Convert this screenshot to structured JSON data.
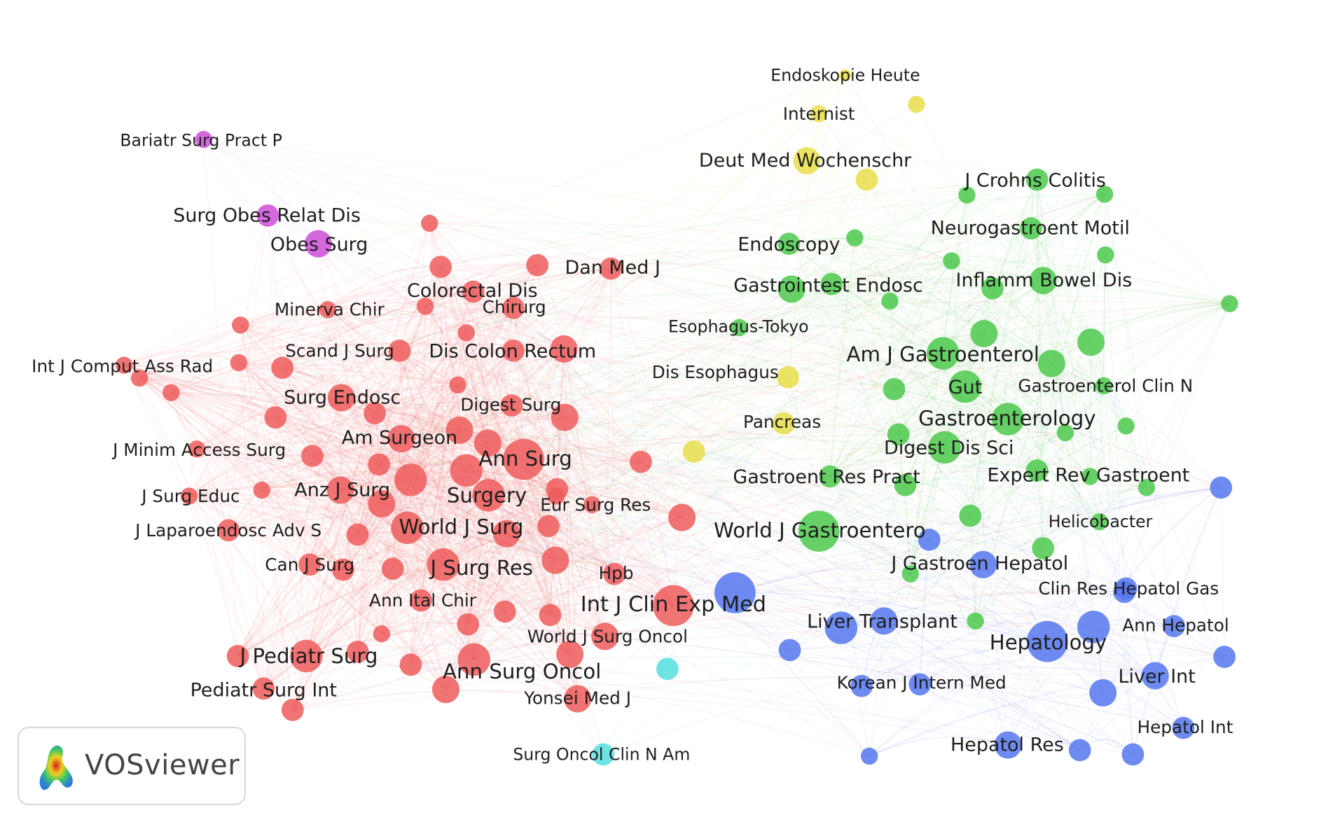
{
  "colors": {
    "red": "#ee5c5c",
    "green": "#4cc94c",
    "blue": "#5577ee",
    "yellow": "#e8de4a",
    "purple": "#cc4fd8",
    "cyan": "#55dede",
    "label": "#1e1e1e"
  },
  "logo": {
    "text": "VOSviewer"
  },
  "nodes": [
    {
      "label": "Endoskopie Heute",
      "cluster": "yellow",
      "weight": 1
    },
    {
      "label": "",
      "cluster": "yellow",
      "weight": 2
    },
    {
      "label": "Internist",
      "cluster": "yellow",
      "weight": 2
    },
    {
      "label": "Deut Med Wochenschr",
      "cluster": "yellow",
      "weight": 4
    },
    {
      "label": "",
      "cluster": "yellow",
      "weight": 3
    },
    {
      "label": "Dis Esophagus",
      "cluster": "yellow",
      "weight": 3
    },
    {
      "label": "Pancreas",
      "cluster": "yellow",
      "weight": 3
    },
    {
      "label": "",
      "cluster": "yellow",
      "weight": 3
    },
    {
      "label": "Bariatr Surg Pract P",
      "cluster": "purple",
      "weight": 2
    },
    {
      "label": "Surg Obes Relat Dis",
      "cluster": "purple",
      "weight": 3
    },
    {
      "label": "Obes Surg",
      "cluster": "purple",
      "weight": 4
    },
    {
      "label": "Surg Oncol Clin N Am",
      "cluster": "cyan",
      "weight": 3
    },
    {
      "label": "",
      "cluster": "cyan",
      "weight": 3
    },
    {
      "label": "J Crohns Colitis",
      "cluster": "green",
      "weight": 3
    },
    {
      "label": "",
      "cluster": "green",
      "weight": 2
    },
    {
      "label": "",
      "cluster": "green",
      "weight": 2
    },
    {
      "label": "Neurogastroent Motil",
      "cluster": "green",
      "weight": 3
    },
    {
      "label": "",
      "cluster": "green",
      "weight": 2
    },
    {
      "label": "Endoscopy",
      "cluster": "green",
      "weight": 3
    },
    {
      "label": "",
      "cluster": "green",
      "weight": 2
    },
    {
      "label": "Gastrointest Endosc",
      "cluster": "green",
      "weight": 4
    },
    {
      "label": "",
      "cluster": "green",
      "weight": 3
    },
    {
      "label": "",
      "cluster": "green",
      "weight": 2
    },
    {
      "label": "Inflamm Bowel Dis",
      "cluster": "green",
      "weight": 4
    },
    {
      "label": "",
      "cluster": "green",
      "weight": 3
    },
    {
      "label": "",
      "cluster": "green",
      "weight": 2
    },
    {
      "label": "Esophagus-Tokyo",
      "cluster": "green",
      "weight": 2
    },
    {
      "label": "Am J Gastroenterol",
      "cluster": "green",
      "weight": 5
    },
    {
      "label": "",
      "cluster": "green",
      "weight": 4
    },
    {
      "label": "",
      "cluster": "green",
      "weight": 4
    },
    {
      "label": "",
      "cluster": "green",
      "weight": 4
    },
    {
      "label": "Gut",
      "cluster": "green",
      "weight": 5
    },
    {
      "label": "",
      "cluster": "green",
      "weight": 3
    },
    {
      "label": "Gastroenterol Clin N",
      "cluster": "green",
      "weight": 2
    },
    {
      "label": "Gastroenterology",
      "cluster": "green",
      "weight": 5
    },
    {
      "label": "",
      "cluster": "green",
      "weight": 3
    },
    {
      "label": "",
      "cluster": "green",
      "weight": 2
    },
    {
      "label": "Digest Dis Sci",
      "cluster": "green",
      "weight": 5
    },
    {
      "label": "Gastroent Res Pract",
      "cluster": "green",
      "weight": 3
    },
    {
      "label": "",
      "cluster": "green",
      "weight": 3
    },
    {
      "label": "Expert Rev Gastroent",
      "cluster": "green",
      "weight": 3
    },
    {
      "label": "",
      "cluster": "green",
      "weight": 2
    },
    {
      "label": "",
      "cluster": "green",
      "weight": 2
    },
    {
      "label": "Helicobacter",
      "cluster": "green",
      "weight": 2
    },
    {
      "label": "",
      "cluster": "green",
      "weight": 3
    },
    {
      "label": "World J Gastroentero",
      "cluster": "green",
      "weight": 6
    },
    {
      "label": "",
      "cluster": "green",
      "weight": 3
    },
    {
      "label": "",
      "cluster": "green",
      "weight": 2
    },
    {
      "label": "",
      "cluster": "green",
      "weight": 2
    },
    {
      "label": "",
      "cluster": "green",
      "weight": 2
    },
    {
      "label": "",
      "cluster": "green",
      "weight": 2
    },
    {
      "label": "J Gastroen Hepatol",
      "cluster": "blue",
      "weight": 4
    },
    {
      "label": "",
      "cluster": "blue",
      "weight": 3
    },
    {
      "label": "Int J Clin Exp Med",
      "cluster": "blue",
      "weight": 6
    },
    {
      "label": "Clin Res Hepatol Gas",
      "cluster": "blue",
      "weight": 3
    },
    {
      "label": "Liver Transplant",
      "cluster": "blue",
      "weight": 5
    },
    {
      "label": "",
      "cluster": "blue",
      "weight": 4
    },
    {
      "label": "Hepatology",
      "cluster": "blue",
      "weight": 6
    },
    {
      "label": "",
      "cluster": "blue",
      "weight": 5
    },
    {
      "label": "Ann Hepatol",
      "cluster": "blue",
      "weight": 3
    },
    {
      "label": "",
      "cluster": "blue",
      "weight": 3
    },
    {
      "label": "",
      "cluster": "blue",
      "weight": 3
    },
    {
      "label": "Korean J Intern Med",
      "cluster": "blue",
      "weight": 3
    },
    {
      "label": "",
      "cluster": "blue",
      "weight": 3
    },
    {
      "label": "Liver Int",
      "cluster": "blue",
      "weight": 4
    },
    {
      "label": "",
      "cluster": "blue",
      "weight": 4
    },
    {
      "label": "",
      "cluster": "blue",
      "weight": 3
    },
    {
      "label": "Hepatol Int",
      "cluster": "blue",
      "weight": 3
    },
    {
      "label": "Hepatol Res",
      "cluster": "blue",
      "weight": 4
    },
    {
      "label": "",
      "cluster": "blue",
      "weight": 3
    },
    {
      "label": "",
      "cluster": "blue",
      "weight": 3
    },
    {
      "label": "",
      "cluster": "blue",
      "weight": 2
    },
    {
      "label": "",
      "cluster": "blue",
      "weight": 3
    },
    {
      "label": "Dan Med J",
      "cluster": "red",
      "weight": 3
    },
    {
      "label": "",
      "cluster": "red",
      "weight": 3
    },
    {
      "label": "",
      "cluster": "red",
      "weight": 2
    },
    {
      "label": "",
      "cluster": "red",
      "weight": 3
    },
    {
      "label": "Colorectal Dis",
      "cluster": "red",
      "weight": 3
    },
    {
      "label": "Chirurg",
      "cluster": "red",
      "weight": 3
    },
    {
      "label": "",
      "cluster": "red",
      "weight": 2
    },
    {
      "label": "Minerva Chir",
      "cluster": "red",
      "weight": 2
    },
    {
      "label": "",
      "cluster": "red",
      "weight": 2
    },
    {
      "label": "Scand J Surg",
      "cluster": "red",
      "weight": 3
    },
    {
      "label": "",
      "cluster": "red",
      "weight": 3
    },
    {
      "label": "Dis Colon Rectum",
      "cluster": "red",
      "weight": 4
    },
    {
      "label": "",
      "cluster": "red",
      "weight": 3
    },
    {
      "label": "Int J Comput Ass Rad",
      "cluster": "red",
      "weight": 2
    },
    {
      "label": "",
      "cluster": "red",
      "weight": 2
    },
    {
      "label": "",
      "cluster": "red",
      "weight": 2
    },
    {
      "label": "",
      "cluster": "red",
      "weight": 2
    },
    {
      "label": "",
      "cluster": "red",
      "weight": 2
    },
    {
      "label": "",
      "cluster": "red",
      "weight": 2
    },
    {
      "label": "Surg Endosc",
      "cluster": "red",
      "weight": 4
    },
    {
      "label": "",
      "cluster": "red",
      "weight": 3
    },
    {
      "label": "",
      "cluster": "red",
      "weight": 4
    },
    {
      "label": "Digest Surg",
      "cluster": "red",
      "weight": 3
    },
    {
      "label": "",
      "cluster": "red",
      "weight": 4
    },
    {
      "label": "",
      "cluster": "red",
      "weight": 3
    },
    {
      "label": "Am Surgeon",
      "cluster": "red",
      "weight": 4
    },
    {
      "label": "",
      "cluster": "red",
      "weight": 4
    },
    {
      "label": "Ann Surg",
      "cluster": "red",
      "weight": 6
    },
    {
      "label": "",
      "cluster": "red",
      "weight": 5
    },
    {
      "label": "J Minim Access Surg",
      "cluster": "red",
      "weight": 2
    },
    {
      "label": "",
      "cluster": "red",
      "weight": 3
    },
    {
      "label": "",
      "cluster": "red",
      "weight": 3
    },
    {
      "label": "",
      "cluster": "red",
      "weight": 5
    },
    {
      "label": "",
      "cluster": "red",
      "weight": 3
    },
    {
      "label": "J Surg Educ",
      "cluster": "red",
      "weight": 2
    },
    {
      "label": "",
      "cluster": "red",
      "weight": 2
    },
    {
      "label": "Anz J Surg",
      "cluster": "red",
      "weight": 4
    },
    {
      "label": "",
      "cluster": "red",
      "weight": 4
    },
    {
      "label": "Surgery",
      "cluster": "red",
      "weight": 5
    },
    {
      "label": "",
      "cluster": "red",
      "weight": 3
    },
    {
      "label": "Eur Surg Res",
      "cluster": "red",
      "weight": 2
    },
    {
      "label": "",
      "cluster": "red",
      "weight": 2
    },
    {
      "label": "",
      "cluster": "red",
      "weight": 4
    },
    {
      "label": "J Laparoendosc Adv S",
      "cluster": "red",
      "weight": 3
    },
    {
      "label": "",
      "cluster": "red",
      "weight": 3
    },
    {
      "label": "World J Surg",
      "cluster": "red",
      "weight": 5
    },
    {
      "label": "",
      "cluster": "red",
      "weight": 4
    },
    {
      "label": "",
      "cluster": "red",
      "weight": 3
    },
    {
      "label": "Can J Surg",
      "cluster": "red",
      "weight": 3
    },
    {
      "label": "",
      "cluster": "red",
      "weight": 3
    },
    {
      "label": "",
      "cluster": "red",
      "weight": 3
    },
    {
      "label": "J Surg Res",
      "cluster": "red",
      "weight": 5
    },
    {
      "label": "",
      "cluster": "red",
      "weight": 4
    },
    {
      "label": "Hpb",
      "cluster": "red",
      "weight": 3
    },
    {
      "label": "",
      "cluster": "red",
      "weight": 6
    },
    {
      "label": "Ann Ital Chir",
      "cluster": "red",
      "weight": 3
    },
    {
      "label": "",
      "cluster": "red",
      "weight": 3
    },
    {
      "label": "",
      "cluster": "red",
      "weight": 3
    },
    {
      "label": "",
      "cluster": "red",
      "weight": 3
    },
    {
      "label": "World J Surg Oncol",
      "cluster": "red",
      "weight": 4
    },
    {
      "label": "J Pediatr Surg",
      "cluster": "red",
      "weight": 5
    },
    {
      "label": "",
      "cluster": "red",
      "weight": 3
    },
    {
      "label": "",
      "cluster": "red",
      "weight": 2
    },
    {
      "label": "",
      "cluster": "red",
      "weight": 3
    },
    {
      "label": "Ann Surg Oncol",
      "cluster": "red",
      "weight": 5
    },
    {
      "label": "",
      "cluster": "red",
      "weight": 4
    },
    {
      "label": "Pediatr Surg Int",
      "cluster": "red",
      "weight": 3
    },
    {
      "label": "",
      "cluster": "red",
      "weight": 3
    },
    {
      "label": "",
      "cluster": "red",
      "weight": 4
    },
    {
      "label": "Yonsei Med J",
      "cluster": "red",
      "weight": 4
    },
    {
      "label": "",
      "cluster": "red",
      "weight": 3
    }
  ]
}
